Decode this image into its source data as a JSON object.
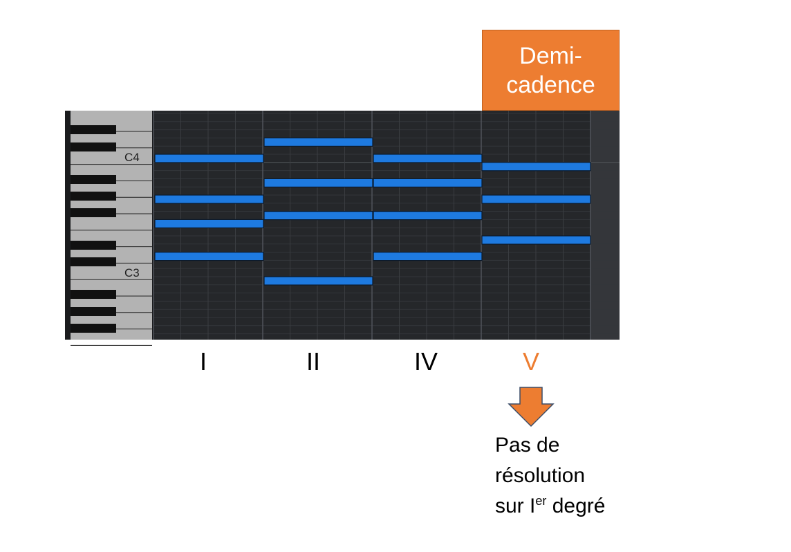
{
  "callout": {
    "line1": "Demi-",
    "line2": "cadence"
  },
  "piano": {
    "labels": [
      "C4",
      "C3"
    ]
  },
  "degrees": [
    {
      "label": "I",
      "highlight": false
    },
    {
      "label": "II",
      "highlight": false
    },
    {
      "label": "IV",
      "highlight": false
    },
    {
      "label": "V",
      "highlight": true
    }
  ],
  "note": {
    "line1": "Pas de",
    "line2": "résolution",
    "line3_pre": "sur I",
    "line3_sup": "er",
    "line3_post": " degré"
  },
  "colors": {
    "accent": "#ED7D31",
    "note_block": "#1E7AE0",
    "grid_bg": "#25272A",
    "piano_white": "#B3B3B3",
    "piano_black": "#111111"
  },
  "chords": [
    {
      "degree": "I",
      "notes": [
        "C4",
        "G3",
        "E3",
        "C3"
      ]
    },
    {
      "degree": "II",
      "notes": [
        "D4",
        "A3",
        "F3",
        "A2"
      ]
    },
    {
      "degree": "IV",
      "notes": [
        "C4",
        "A3",
        "F3",
        "C3"
      ]
    },
    {
      "degree": "V",
      "notes": [
        "B3",
        "G3",
        "D3"
      ]
    }
  ]
}
